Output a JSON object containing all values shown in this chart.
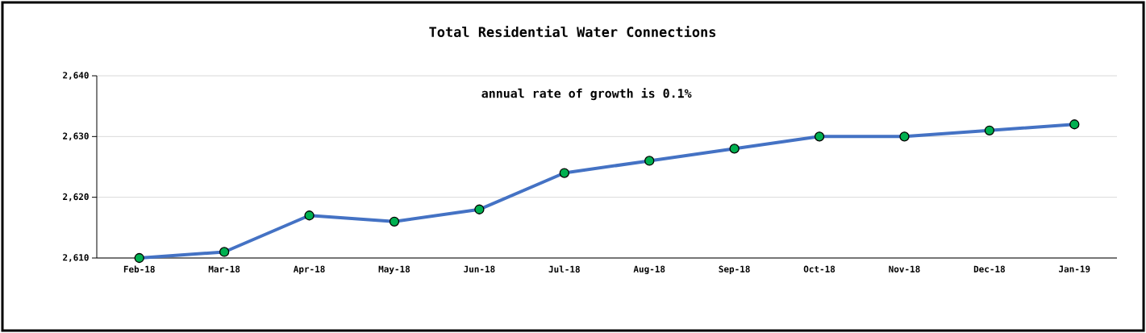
{
  "chart_data": {
    "type": "line",
    "title": "Total Residential Water Connections",
    "annotations": [
      "annual rate of growth is 0.1%"
    ],
    "categories": [
      "Feb-18",
      "Mar-18",
      "Apr-18",
      "May-18",
      "Jun-18",
      "Jul-18",
      "Aug-18",
      "Sep-18",
      "Oct-18",
      "Nov-18",
      "Dec-18",
      "Jan-19"
    ],
    "series": [
      {
        "color": "#4472c4",
        "values": [
          2610,
          2611,
          2617,
          2616,
          2618,
          2624,
          2626,
          2628,
          2630,
          2630,
          2631,
          2632
        ]
      }
    ],
    "ylim": [
      2610,
      2640
    ],
    "yticks": [
      {
        "value": 2610,
        "label": "2,610"
      },
      {
        "value": 2620,
        "label": "2,620"
      },
      {
        "value": 2630,
        "label": "2,630"
      },
      {
        "value": 2640,
        "label": "2,640"
      }
    ],
    "grid": "y",
    "marker": "circle",
    "line_style": "solid"
  }
}
